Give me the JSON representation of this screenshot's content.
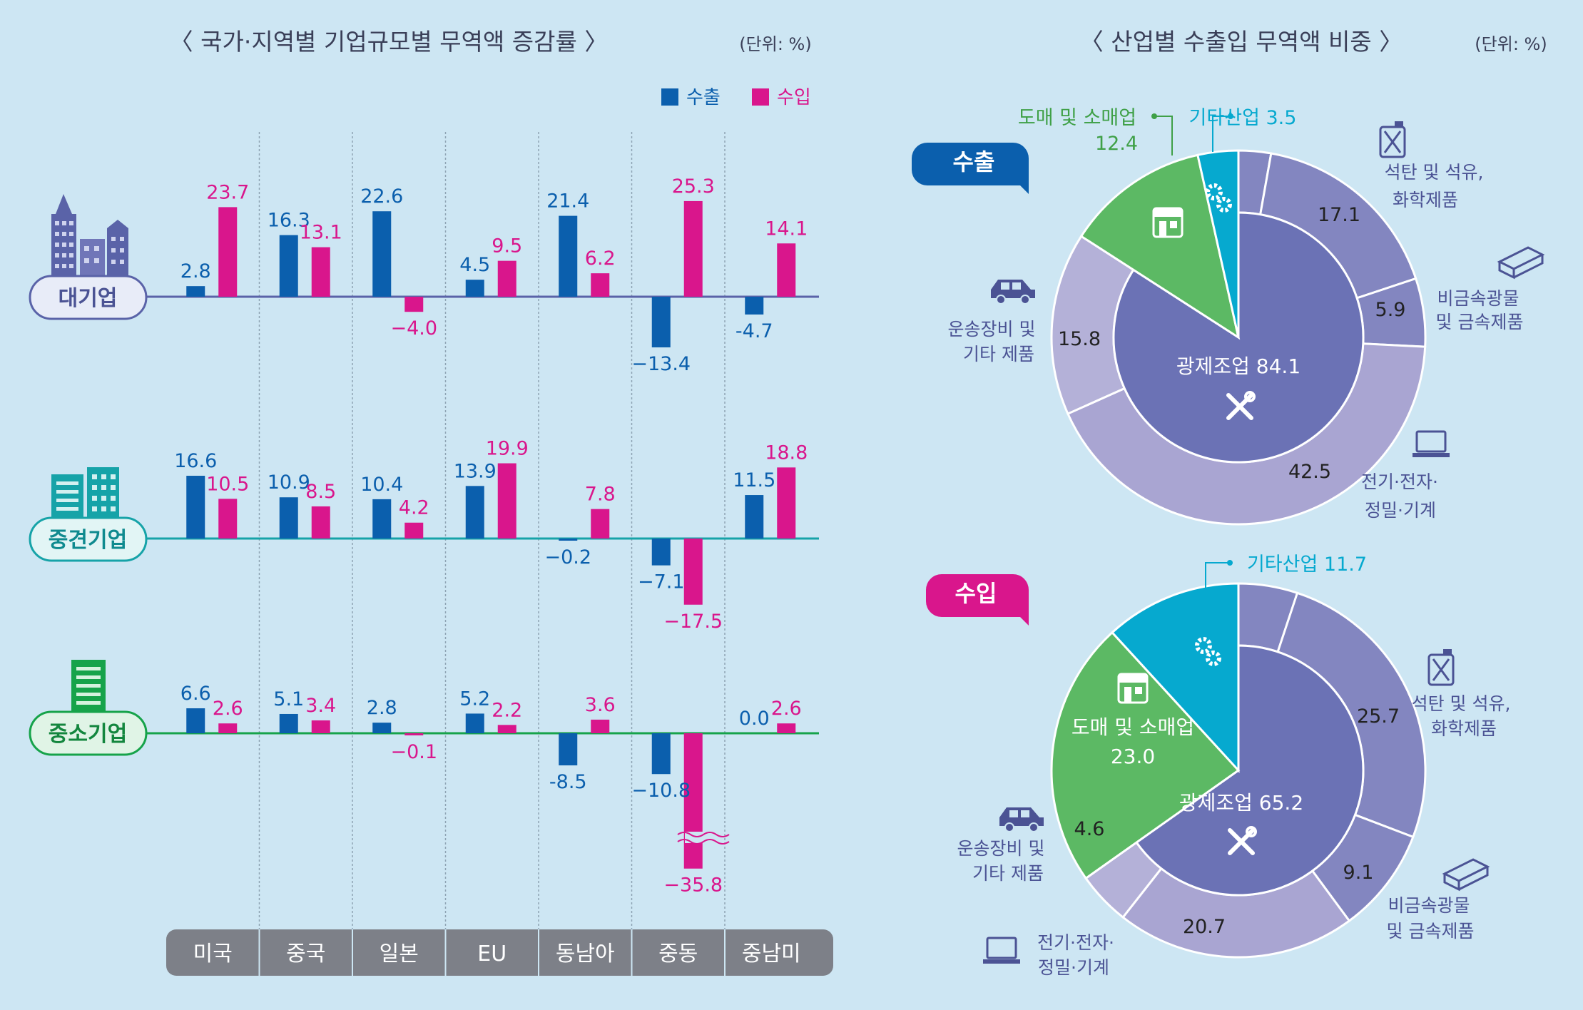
{
  "colors": {
    "background": "#cde6f3",
    "export": "#0b5fad",
    "import": "#d9168c",
    "large_line": "#5a63a8",
    "mid_line": "#16a3a8",
    "small_line": "#16a34a",
    "manufacturing": "#6b72b5",
    "manuf_segment": "#8386c0",
    "outer_light": "#b4b1d8",
    "outer_mid": "#a9a5d2",
    "wholesale": "#5cb964",
    "other": "#06a9cf",
    "axis_box": "#7d8088"
  },
  "left": {
    "title": "〈 국가·지역별 기업규모별 무역액 증감률 〉",
    "unit": "(단위: %)",
    "legend": [
      {
        "label": "수출",
        "color": "#0b5fad"
      },
      {
        "label": "수입",
        "color": "#d9168c"
      }
    ],
    "categories": [
      "미국",
      "중국",
      "일본",
      "EU",
      "동남아",
      "중동",
      "중남미"
    ],
    "group_labels": {
      "large": "대기업",
      "mid": "중견기업",
      "small": "중소기업"
    },
    "broken_value_note": "-35.8"
  },
  "right": {
    "title": "〈 산업별 수출입 무역액 비중 〉",
    "unit": "(단위: %)",
    "export_badge": "수출",
    "import_badge": "수입"
  },
  "chart_data": [
    {
      "type": "bar",
      "title": "",
      "categories": [
        "미국",
        "중국",
        "일본",
        "EU",
        "동남아",
        "중동",
        "중남미"
      ],
      "groups": [
        {
          "name": "대기업",
          "series": [
            {
              "name": "수출",
              "values": [
                2.8,
                16.3,
                22.6,
                4.5,
                21.4,
                -13.4,
                -4.7
              ]
            },
            {
              "name": "수입",
              "values": [
                23.7,
                13.1,
                -4.0,
                9.5,
                6.2,
                25.3,
                14.1
              ]
            }
          ]
        },
        {
          "name": "중견기업",
          "series": [
            {
              "name": "수출",
              "values": [
                16.6,
                10.9,
                10.4,
                13.9,
                -0.2,
                -7.1,
                11.5
              ]
            },
            {
              "name": "수입",
              "values": [
                10.5,
                8.5,
                4.2,
                19.9,
                7.8,
                -17.5,
                18.8
              ]
            }
          ]
        },
        {
          "name": "중소기업",
          "series": [
            {
              "name": "수출",
              "values": [
                6.6,
                5.1,
                2.8,
                5.2,
                -8.5,
                -10.8,
                0.0
              ]
            },
            {
              "name": "수입",
              "values": [
                2.6,
                3.4,
                -0.1,
                2.2,
                3.6,
                -35.8,
                2.6
              ]
            }
          ]
        }
      ],
      "value_labels": {
        "대기업": {
          "수출": [
            "2.8",
            "16.3",
            "22.6",
            "4.5",
            "21.4",
            "−13.4",
            "-4.7"
          ],
          "수입": [
            "23.7",
            "13.1",
            "−4.0",
            "9.5",
            "6.2",
            "25.3",
            "14.1"
          ]
        },
        "중견기업": {
          "수출": [
            "16.6",
            "10.9",
            "10.4",
            "13.9",
            "−0.2",
            "−7.1",
            "11.5"
          ],
          "수입": [
            "10.5",
            "8.5",
            "4.2",
            "19.9",
            "7.8",
            "−17.5",
            "18.8"
          ]
        },
        "중소기업": {
          "수출": [
            "6.6",
            "5.1",
            "2.8",
            "5.2",
            "-8.5",
            "−10.8",
            "0.0"
          ],
          "수입": [
            "2.6",
            "3.4",
            "−0.1",
            "2.2",
            "3.6",
            "−35.8",
            "2.6"
          ]
        }
      }
    },
    {
      "type": "pie",
      "title": "수출",
      "slices": [
        {
          "label": "광제조업",
          "value": 84.1,
          "display": "광제조업 84.1"
        },
        {
          "label": "도매 및 소매업",
          "value": 12.4,
          "display": "12.4"
        },
        {
          "label": "기타산업",
          "value": 3.5,
          "display": "기타산업 3.5"
        }
      ],
      "manufacturing_breakdown": [
        {
          "label": "석탄 및 석유, 화학제품",
          "value": 17.1
        },
        {
          "label": "비금속광물 및 금속제품",
          "value": 5.9
        },
        {
          "label": "전기·전자·정밀·기계",
          "value": 42.5
        },
        {
          "label": "운송장비 및 기타 제품",
          "value": 15.8
        }
      ]
    },
    {
      "type": "pie",
      "title": "수입",
      "slices": [
        {
          "label": "광제조업",
          "value": 65.2,
          "display": "광제조업 65.2"
        },
        {
          "label": "도매 및 소매업",
          "value": 23.0,
          "display": "23.0"
        },
        {
          "label": "기타산업",
          "value": 11.7,
          "display": "기타산업 11.7"
        }
      ],
      "manufacturing_breakdown": [
        {
          "label": "석탄 및 석유, 화학제품",
          "value": 25.7
        },
        {
          "label": "비금속광물 및 금속제품",
          "value": 9.1
        },
        {
          "label": "전기·전자·정밀·기계",
          "value": 20.7
        },
        {
          "label": "운송장비 및 기타 제품",
          "value": 4.6
        }
      ]
    }
  ],
  "donut_labels": {
    "export": {
      "wholesale_name": "도매 및 소매업",
      "other_name": "기타산업 3.5",
      "cat1": [
        "석탄 및 석유,",
        "화학제품"
      ],
      "cat2": [
        "비금속광물",
        "및 금속제품"
      ],
      "cat3": [
        "전기·전자·",
        "정밀·기계"
      ],
      "cat4": [
        "운송장비 및",
        "기타 제품"
      ]
    },
    "import": {
      "wholesale_name": "도매 및 소매업",
      "other_name": "기타산업 11.7",
      "cat1": [
        "석탄 및 석유,",
        "화학제품"
      ],
      "cat2": [
        "비금속광물",
        "및 금속제품"
      ],
      "cat3": [
        "전기·전자·",
        "정밀·기계"
      ],
      "cat4": [
        "운송장비 및",
        "기타 제품"
      ]
    }
  },
  "icons": [
    "buildings-icon",
    "office-building-icon",
    "small-building-icon",
    "store-icon",
    "gears-icon",
    "tools-icon",
    "fuel-can-icon",
    "steel-beam-icon",
    "laptop-icon",
    "car-icon"
  ]
}
